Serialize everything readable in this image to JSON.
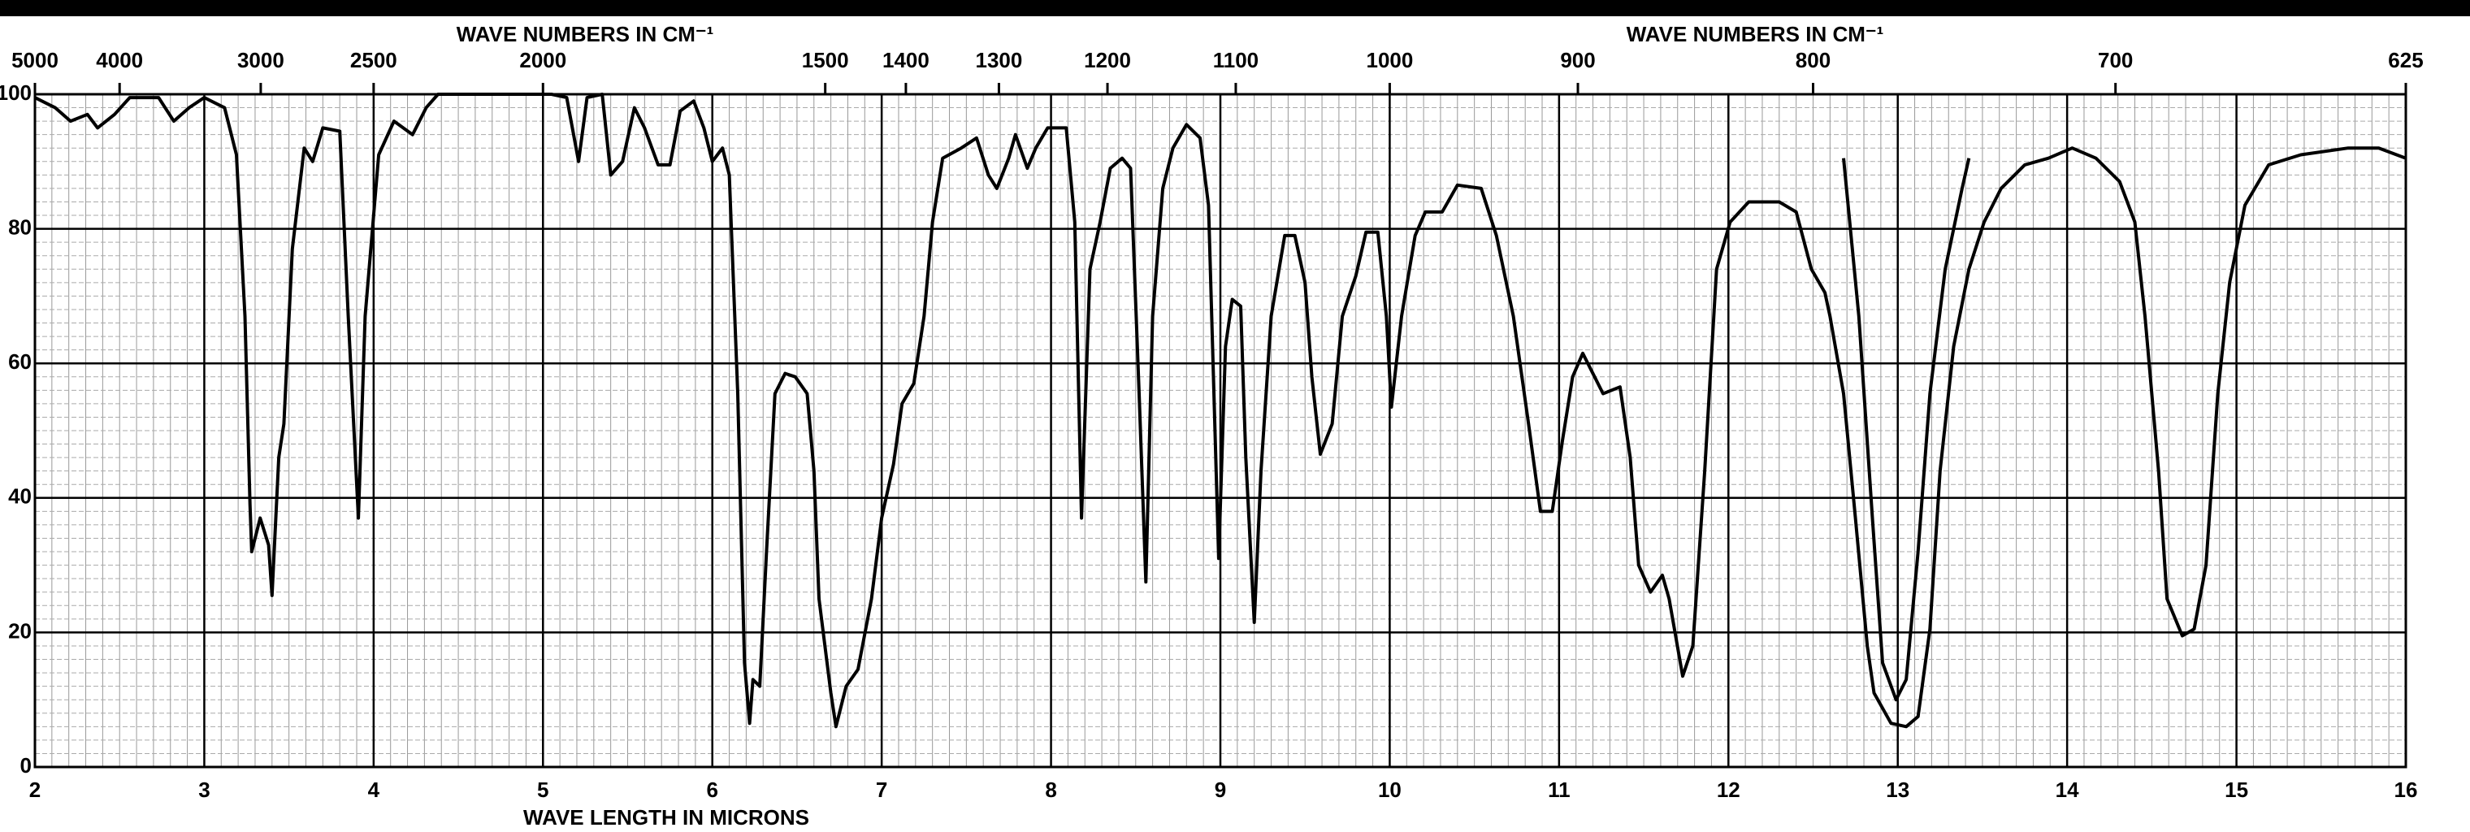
{
  "chart_data": {
    "type": "line",
    "top_axis_label": "WAVE NUMBERS IN CM⁻¹",
    "x_label": "WAVE LENGTH IN MICRONS",
    "xlim": [
      2,
      16
    ],
    "xticks": [
      2,
      3,
      4,
      5,
      6,
      7,
      8,
      9,
      10,
      11,
      12,
      13,
      14,
      15,
      16
    ],
    "x2ticks": [
      5000,
      4000,
      3000,
      2500,
      2000,
      1500,
      1400,
      1300,
      1200,
      1100,
      1000,
      900,
      800,
      700,
      625
    ],
    "ylim": [
      0,
      100
    ],
    "yticks": [
      0,
      20,
      40,
      60,
      80,
      100
    ],
    "grid": true,
    "series": [
      {
        "color": "#000000",
        "x": [
          2.0,
          2.12,
          2.21,
          2.31,
          2.37,
          2.47,
          2.56,
          2.73,
          2.82,
          2.91,
          3.0,
          3.12,
          3.19,
          3.24,
          3.27,
          3.28,
          3.33,
          3.38,
          3.4,
          3.44,
          3.47,
          3.52,
          3.59,
          3.64,
          3.7,
          3.8,
          3.85,
          3.91,
          3.95,
          4.03,
          4.12,
          4.23,
          4.31,
          4.38,
          5.05,
          5.14,
          5.21,
          5.26,
          5.35,
          5.4,
          5.47,
          5.54,
          5.6,
          5.68,
          5.75,
          5.81,
          5.89,
          5.95,
          6.0,
          6.06,
          6.1,
          6.15,
          6.19,
          6.22,
          6.24,
          6.28,
          6.32,
          6.37,
          6.43,
          6.49,
          6.56,
          6.6,
          6.63,
          6.7,
          6.73,
          6.79,
          6.86,
          6.94,
          7.0,
          7.07,
          7.12,
          7.19,
          7.25,
          7.3,
          7.36,
          7.47,
          7.56,
          7.63,
          7.68,
          7.75,
          7.79,
          7.86,
          7.91,
          7.98,
          8.09,
          8.14,
          8.18,
          8.23,
          8.29,
          8.35,
          8.42,
          8.47,
          8.52,
          8.56,
          8.6,
          8.66,
          8.72,
          8.8,
          8.88,
          8.93,
          8.99,
          9.03,
          9.07,
          9.12,
          9.15,
          9.2,
          9.24,
          9.3,
          9.38,
          9.44,
          9.5,
          9.54,
          9.59,
          9.66,
          9.72,
          9.8,
          9.86,
          9.93,
          9.98,
          10.01,
          10.07,
          10.15,
          10.21,
          10.31,
          10.4,
          10.54,
          10.63,
          10.73,
          10.82,
          10.89,
          10.96,
          11.02,
          11.08,
          11.14,
          11.21,
          11.26,
          11.36,
          11.42,
          11.47,
          11.54,
          11.61,
          11.65,
          11.73,
          11.79,
          11.86,
          11.93,
          12.01,
          12.12,
          12.3,
          12.4,
          12.49,
          12.57,
          12.6,
          12.68,
          12.75,
          12.82,
          12.86,
          12.96,
          13.05,
          13.12,
          13.19,
          13.25,
          13.33,
          13.42,
          13.51,
          13.61,
          13.75,
          13.89,
          14.03,
          14.17,
          14.31,
          14.4,
          14.46,
          14.54,
          14.59,
          14.68,
          14.75,
          14.82,
          14.89,
          14.96,
          15.05,
          15.19,
          15.38,
          15.66,
          15.84,
          16.0
        ],
        "values": [
          99.5,
          98,
          96,
          97,
          95,
          97,
          99.5,
          99.5,
          96,
          98,
          99.5,
          98,
          91,
          67,
          39,
          32,
          37,
          33,
          25.5,
          46,
          51,
          77,
          92,
          90,
          95,
          94.5,
          67,
          37,
          67,
          91,
          96,
          94,
          98,
          100,
          100,
          99.5,
          90,
          99.5,
          100,
          88,
          90,
          98,
          95,
          89.5,
          89.5,
          97.5,
          99,
          95,
          90,
          92,
          88,
          55.5,
          15.5,
          6.5,
          13,
          12,
          32,
          55.5,
          58.5,
          58,
          55.5,
          44,
          25,
          11,
          6,
          12,
          14.5,
          25,
          37,
          45,
          54,
          57,
          67,
          81,
          90.5,
          92,
          93.5,
          88,
          86,
          90.5,
          94,
          89,
          92,
          95,
          95,
          81,
          37,
          74,
          81,
          89,
          90.5,
          89,
          55.5,
          27.5,
          67,
          86,
          92,
          95.5,
          93.5,
          83.5,
          31,
          62.5,
          69.5,
          68.5,
          46,
          21.5,
          44,
          67,
          79,
          79,
          72,
          58,
          46.5,
          51,
          67,
          73,
          79.5,
          79.5,
          67,
          53.5,
          67,
          79,
          82.5,
          82.5,
          86.5,
          86,
          79,
          67,
          51,
          38,
          38,
          48.5,
          58,
          61.5,
          58,
          55.5,
          56.5,
          46,
          30,
          26,
          28.5,
          25,
          13.5,
          18,
          44,
          74,
          81,
          84,
          84,
          82.5,
          74,
          70.5,
          67,
          55.5,
          37,
          18,
          11,
          6.5,
          6,
          7.5,
          20.5,
          44,
          62.5,
          74,
          81,
          86,
          89.5,
          90.5,
          92,
          90.5,
          87,
          81,
          67,
          44,
          25,
          19.5,
          20.5,
          30,
          55.5,
          72,
          83.5,
          89.5,
          91,
          92,
          92,
          90.5
        ]
      },
      {
        "color": "#000000",
        "x": [
          12.68,
          12.77,
          12.85,
          12.91,
          12.99,
          13.05,
          13.12,
          13.19,
          13.28,
          13.38,
          13.42
        ],
        "values": [
          90.5,
          67,
          37,
          15.5,
          10,
          13,
          32,
          55.5,
          74,
          86,
          90.5
        ]
      }
    ]
  }
}
